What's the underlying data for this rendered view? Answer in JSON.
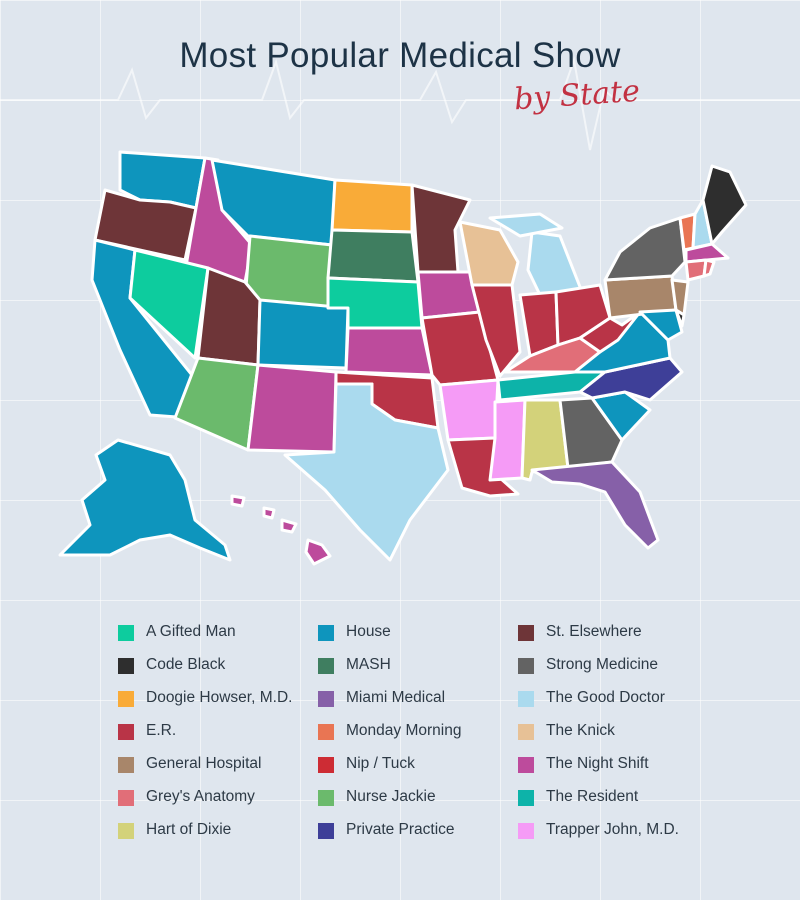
{
  "title": "Most Popular Medical Show",
  "subtitle": "by State",
  "shows": [
    {
      "id": "gifted",
      "label": "A Gifted Man",
      "color": "#0dcc9e"
    },
    {
      "id": "codeblack",
      "label": "Code Black",
      "color": "#2e2e2e"
    },
    {
      "id": "doogie",
      "label": "Doogie Howser, M.D.",
      "color": "#f9ab38"
    },
    {
      "id": "er",
      "label": "E.R.",
      "color": "#b93447"
    },
    {
      "id": "general",
      "label": "General Hospital",
      "color": "#a8866a"
    },
    {
      "id": "greys",
      "label": "Grey's Anatomy",
      "color": "#e16e78"
    },
    {
      "id": "dixie",
      "label": "Hart of Dixie",
      "color": "#d3d27a"
    },
    {
      "id": "house",
      "label": "House",
      "color": "#0e95bd"
    },
    {
      "id": "mash",
      "label": "MASH",
      "color": "#3f7e60"
    },
    {
      "id": "miami",
      "label": "Miami Medical",
      "color": "#8660a8"
    },
    {
      "id": "monday",
      "label": "Monday Morning",
      "color": "#e97553"
    },
    {
      "id": "niptuck",
      "label": "Nip / Tuck",
      "color": "#cd2c34"
    },
    {
      "id": "jackie",
      "label": "Nurse Jackie",
      "color": "#6bba6c"
    },
    {
      "id": "private",
      "label": "Private Practice",
      "color": "#3e3f98"
    },
    {
      "id": "stels",
      "label": "St. Elsewhere",
      "color": "#6e3538"
    },
    {
      "id": "strong",
      "label": "Strong Medicine",
      "color": "#636363"
    },
    {
      "id": "gooddoc",
      "label": "The Good Doctor",
      "color": "#aadaee"
    },
    {
      "id": "knick",
      "label": "The Knick",
      "color": "#e7c196"
    },
    {
      "id": "nightshift",
      "label": "The Night Shift",
      "color": "#bd4b9c"
    },
    {
      "id": "resident",
      "label": "The Resident",
      "color": "#0db3a9"
    },
    {
      "id": "trapper",
      "label": "Trapper John, M.D.",
      "color": "#f59bf6"
    }
  ]
}
